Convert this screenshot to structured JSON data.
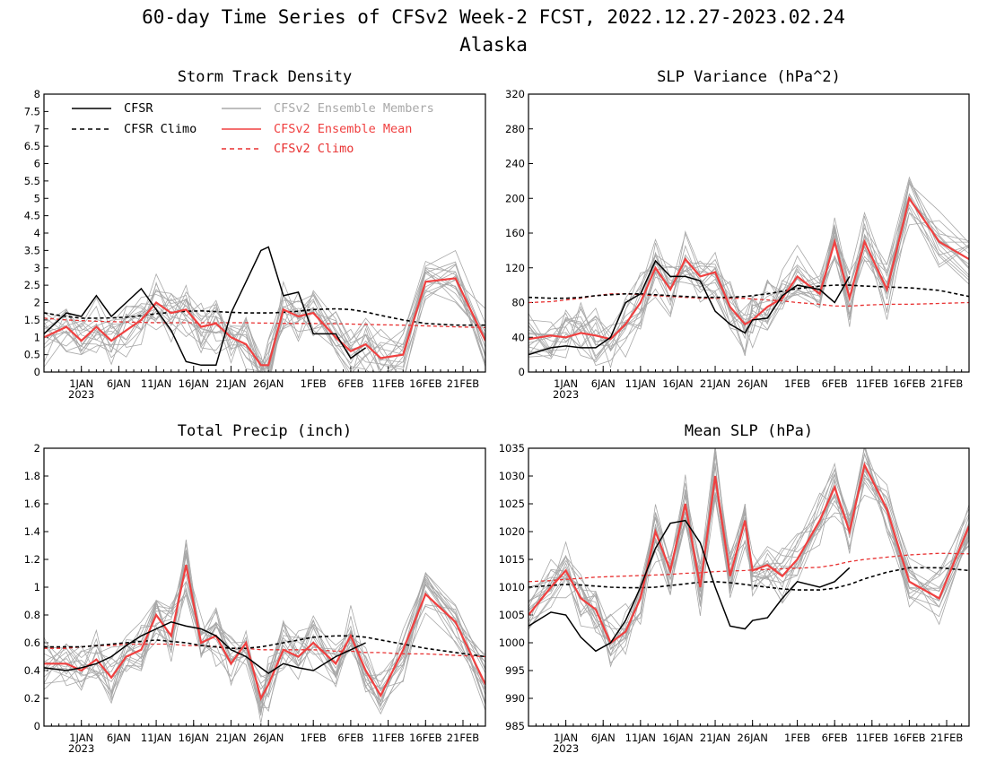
{
  "figure": {
    "title": "60-day Time Series of CFSv2 Week-2 FCST, 2022.12.27-2023.02.24",
    "subtitle": "Alaska"
  },
  "x_axis": {
    "start": "2022-12-27",
    "end": "2023-02-24",
    "tick_labels": [
      "1JAN",
      "6JAN",
      "11JAN",
      "16JAN",
      "21JAN",
      "26JAN",
      "1FEB",
      "6FEB",
      "11FEB",
      "16FEB",
      "21FEB"
    ],
    "tick_dates": [
      "2023-01-01",
      "2023-01-06",
      "2023-01-11",
      "2023-01-16",
      "2023-01-21",
      "2023-01-26",
      "2023-02-01",
      "2023-02-06",
      "2023-02-11",
      "2023-02-16",
      "2023-02-21"
    ],
    "year_label": "2023"
  },
  "legend": {
    "cfsr": "CFSR",
    "cfsr_climo": "CFSR Climo",
    "members": "CFSv2 Ensemble Members",
    "ens_mean": "CFSv2 Ensemble Mean",
    "cfsv2_climo": "CFSv2 Climo"
  },
  "colors": {
    "cfsr": "#000000",
    "members": "#a8a8a8",
    "ens_mean": "#f04040",
    "cfsv2_climo": "#e83030"
  },
  "chart_data": [
    {
      "type": "line",
      "title": "Storm Track Density",
      "ylim": [
        0,
        8
      ],
      "yticks": [
        "0",
        "0.5",
        "1",
        "1.5",
        "2",
        "2.5",
        "3",
        "3.5",
        "4",
        "4.5",
        "5",
        "5.5",
        "6",
        "6.5",
        "7",
        "7.5",
        "8"
      ],
      "x": [
        "2022-12-27",
        "2022-12-30",
        "2023-01-01",
        "2023-01-03",
        "2023-01-05",
        "2023-01-07",
        "2023-01-09",
        "2023-01-11",
        "2023-01-13",
        "2023-01-15",
        "2023-01-17",
        "2023-01-19",
        "2023-01-21",
        "2023-01-23",
        "2023-01-25",
        "2023-01-26",
        "2023-01-28",
        "2023-01-30",
        "2023-02-01",
        "2023-02-04",
        "2023-02-06",
        "2023-02-08",
        "2023-02-10",
        "2023-02-13",
        "2023-02-16",
        "2023-02-20",
        "2023-02-24"
      ],
      "series": [
        {
          "name": "CFSR",
          "values": [
            1.1,
            1.7,
            1.6,
            2.2,
            1.6,
            2.0,
            2.4,
            1.8,
            1.2,
            0.3,
            0.2,
            0.2,
            1.7,
            2.6,
            3.5,
            3.6,
            2.2,
            2.3,
            1.1,
            1.1,
            0.4,
            0.7,
            null,
            null,
            null,
            null,
            null
          ]
        },
        {
          "name": "CFSR Climo",
          "values": [
            1.7,
            1.6,
            1.55,
            1.55,
            1.56,
            1.58,
            1.62,
            1.68,
            1.72,
            1.75,
            1.76,
            1.74,
            1.72,
            1.7,
            1.7,
            1.7,
            1.72,
            1.75,
            1.8,
            1.82,
            1.8,
            1.73,
            1.63,
            1.5,
            1.4,
            1.35,
            1.35
          ]
        },
        {
          "name": "CFSv2 Ensemble Mean",
          "values": [
            1.0,
            1.3,
            0.9,
            1.3,
            0.9,
            1.2,
            1.5,
            2.0,
            1.7,
            1.8,
            1.3,
            1.4,
            1.0,
            0.8,
            0.2,
            0.2,
            1.8,
            1.6,
            1.7,
            1.0,
            0.6,
            0.8,
            0.4,
            0.5,
            2.6,
            2.7,
            0.9
          ]
        },
        {
          "name": "CFSv2 Climo",
          "values": [
            1.55,
            1.5,
            1.48,
            1.46,
            1.45,
            1.44,
            1.43,
            1.42,
            1.42,
            1.42,
            1.42,
            1.42,
            1.42,
            1.42,
            1.41,
            1.41,
            1.4,
            1.4,
            1.4,
            1.39,
            1.38,
            1.37,
            1.36,
            1.35,
            1.33,
            1.3,
            1.28
          ]
        }
      ]
    },
    {
      "type": "line",
      "title": "SLP Variance (hPa^2)",
      "ylim": [
        0,
        320
      ],
      "yticks": [
        "0",
        "40",
        "80",
        "120",
        "160",
        "200",
        "240",
        "280",
        "320"
      ],
      "x": [
        "2022-12-27",
        "2022-12-30",
        "2023-01-01",
        "2023-01-03",
        "2023-01-05",
        "2023-01-07",
        "2023-01-09",
        "2023-01-11",
        "2023-01-13",
        "2023-01-15",
        "2023-01-17",
        "2023-01-19",
        "2023-01-21",
        "2023-01-23",
        "2023-01-25",
        "2023-01-26",
        "2023-01-28",
        "2023-01-30",
        "2023-02-01",
        "2023-02-04",
        "2023-02-06",
        "2023-02-08",
        "2023-02-10",
        "2023-02-13",
        "2023-02-16",
        "2023-02-20",
        "2023-02-24"
      ],
      "series": [
        {
          "name": "CFSR",
          "values": [
            20,
            28,
            30,
            28,
            28,
            40,
            80,
            90,
            128,
            110,
            110,
            105,
            70,
            55,
            45,
            60,
            62,
            88,
            100,
            95,
            80,
            110,
            null,
            null,
            null,
            null,
            null
          ]
        },
        {
          "name": "CFSR Climo",
          "values": [
            86,
            85,
            85,
            86,
            88,
            89,
            90,
            90,
            89,
            88,
            87,
            86,
            86,
            86,
            87,
            88,
            90,
            93,
            96,
            99,
            100,
            100,
            99,
            98,
            97,
            94,
            87
          ]
        },
        {
          "name": "CFSv2 Ensemble Mean",
          "values": [
            38,
            42,
            40,
            45,
            42,
            38,
            55,
            80,
            120,
            95,
            130,
            110,
            115,
            75,
            55,
            60,
            75,
            85,
            110,
            90,
            150,
            85,
            150,
            95,
            200,
            150,
            130
          ]
        },
        {
          "name": "CFSv2 Climo",
          "values": [
            80,
            81,
            83,
            85,
            88,
            90,
            90,
            89,
            88,
            87,
            86,
            85,
            85,
            85,
            85,
            84,
            83,
            82,
            80,
            78,
            76,
            76,
            77,
            78,
            78,
            79,
            80
          ]
        }
      ]
    },
    {
      "type": "line",
      "title": "Total Precip (inch)",
      "ylim": [
        0,
        2
      ],
      "yticks": [
        "0",
        "0.2",
        "0.4",
        "0.6",
        "0.8",
        "1",
        "1.2",
        "1.4",
        "1.6",
        "1.8",
        "2"
      ],
      "x": [
        "2022-12-27",
        "2022-12-30",
        "2023-01-01",
        "2023-01-03",
        "2023-01-05",
        "2023-01-07",
        "2023-01-09",
        "2023-01-11",
        "2023-01-13",
        "2023-01-15",
        "2023-01-17",
        "2023-01-19",
        "2023-01-21",
        "2023-01-23",
        "2023-01-25",
        "2023-01-26",
        "2023-01-28",
        "2023-01-30",
        "2023-02-01",
        "2023-02-04",
        "2023-02-06",
        "2023-02-08",
        "2023-02-10",
        "2023-02-13",
        "2023-02-16",
        "2023-02-20",
        "2023-02-24"
      ],
      "series": [
        {
          "name": "CFSR",
          "values": [
            0.42,
            0.4,
            0.42,
            0.45,
            0.5,
            0.58,
            0.65,
            0.7,
            0.75,
            0.72,
            0.7,
            0.65,
            0.55,
            0.5,
            0.42,
            0.38,
            0.45,
            0.42,
            0.4,
            0.5,
            0.55,
            0.6,
            null,
            null,
            null,
            null,
            null
          ]
        },
        {
          "name": "CFSR Climo",
          "values": [
            0.57,
            0.57,
            0.57,
            0.58,
            0.59,
            0.6,
            0.61,
            0.62,
            0.61,
            0.6,
            0.58,
            0.57,
            0.56,
            0.56,
            0.57,
            0.58,
            0.6,
            0.62,
            0.64,
            0.65,
            0.65,
            0.64,
            0.62,
            0.59,
            0.56,
            0.53,
            0.5
          ]
        },
        {
          "name": "CFSv2 Ensemble Mean",
          "values": [
            0.45,
            0.45,
            0.4,
            0.48,
            0.35,
            0.5,
            0.55,
            0.8,
            0.65,
            1.16,
            0.6,
            0.65,
            0.45,
            0.6,
            0.2,
            0.3,
            0.55,
            0.5,
            0.6,
            0.45,
            0.65,
            0.4,
            0.22,
            0.55,
            0.95,
            0.75,
            0.3
          ]
        },
        {
          "name": "CFSv2 Climo",
          "values": [
            0.56,
            0.56,
            0.57,
            0.58,
            0.58,
            0.59,
            0.59,
            0.59,
            0.59,
            0.58,
            0.58,
            0.57,
            0.56,
            0.56,
            0.55,
            0.55,
            0.55,
            0.55,
            0.55,
            0.54,
            0.54,
            0.53,
            0.53,
            0.52,
            0.52,
            0.51,
            0.5
          ]
        }
      ]
    },
    {
      "type": "line",
      "title": "Mean SLP (hPa)",
      "ylim": [
        985,
        1035
      ],
      "yticks": [
        "985",
        "990",
        "995",
        "1000",
        "1005",
        "1010",
        "1015",
        "1020",
        "1025",
        "1030",
        "1035"
      ],
      "x": [
        "2022-12-27",
        "2022-12-30",
        "2023-01-01",
        "2023-01-03",
        "2023-01-05",
        "2023-01-07",
        "2023-01-09",
        "2023-01-11",
        "2023-01-13",
        "2023-01-15",
        "2023-01-17",
        "2023-01-19",
        "2023-01-21",
        "2023-01-23",
        "2023-01-25",
        "2023-01-26",
        "2023-01-28",
        "2023-01-30",
        "2023-02-01",
        "2023-02-04",
        "2023-02-06",
        "2023-02-08",
        "2023-02-10",
        "2023-02-13",
        "2023-02-16",
        "2023-02-20",
        "2023-02-24"
      ],
      "series": [
        {
          "name": "CFSR",
          "values": [
            1003,
            1005.5,
            1005,
            1001,
            998.5,
            1000,
            1004,
            1010,
            1017,
            1021.5,
            1022,
            1018,
            1010,
            1003,
            1002.5,
            1004,
            1004.5,
            1008,
            1011,
            1010,
            1011,
            1013.5,
            null,
            null,
            null,
            null,
            null
          ]
        },
        {
          "name": "CFSR Climo",
          "values": [
            1010,
            1010.3,
            1010.5,
            1010.4,
            1010.2,
            1010,
            1009.9,
            1009.9,
            1010,
            1010.3,
            1010.6,
            1010.9,
            1011,
            1010.8,
            1010.5,
            1010.3,
            1010,
            1009.7,
            1009.5,
            1009.5,
            1009.8,
            1010.5,
            1011.5,
            1012.7,
            1013.5,
            1013.5,
            1013
          ]
        },
        {
          "name": "CFSv2 Ensemble Mean",
          "values": [
            1005,
            1010,
            1013,
            1008,
            1006,
            1000,
            1002,
            1008,
            1020,
            1013,
            1025,
            1010,
            1030,
            1012,
            1022,
            1013,
            1014,
            1012,
            1015,
            1022,
            1028,
            1020,
            1032,
            1024,
            1011,
            1008,
            1021
          ]
        },
        {
          "name": "CFSv2 Climo",
          "values": [
            1011,
            1011.2,
            1011.4,
            1011.6,
            1011.8,
            1011.9,
            1012,
            1012.1,
            1012.2,
            1012.3,
            1012.5,
            1012.6,
            1012.8,
            1012.9,
            1013,
            1013.1,
            1013.2,
            1013.3,
            1013.4,
            1013.6,
            1014,
            1014.6,
            1015,
            1015.4,
            1015.8,
            1016.1,
            1016
          ]
        }
      ]
    }
  ]
}
